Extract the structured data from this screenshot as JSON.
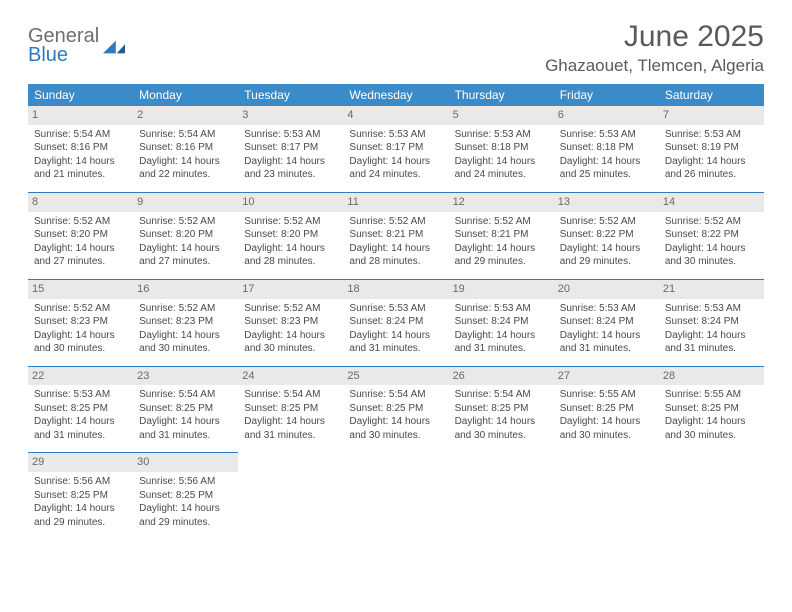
{
  "logo": {
    "general": "General",
    "blue": "Blue"
  },
  "title": "June 2025",
  "location": "Ghazaouet, Tlemcen, Algeria",
  "colors": {
    "header_bg": "#3b8bc9",
    "header_text": "#ffffff",
    "daynum_bg": "#e9e9e9",
    "row_border": "#2f7bbf",
    "text": "#4a4a4a",
    "title_color": "#5a5a5a",
    "logo_gray": "#6f6f6f",
    "logo_blue": "#2f7bbf",
    "page_bg": "#ffffff"
  },
  "typography": {
    "title_fontsize": 30,
    "location_fontsize": 17,
    "header_fontsize": 12,
    "cell_fontsize": 10,
    "daynum_fontsize": 11
  },
  "table": {
    "columns": [
      "Sunday",
      "Monday",
      "Tuesday",
      "Wednesday",
      "Thursday",
      "Friday",
      "Saturday"
    ],
    "weeks": [
      [
        {
          "day": "1",
          "sunrise": "Sunrise: 5:54 AM",
          "sunset": "Sunset: 8:16 PM",
          "dl1": "Daylight: 14 hours",
          "dl2": "and 21 minutes."
        },
        {
          "day": "2",
          "sunrise": "Sunrise: 5:54 AM",
          "sunset": "Sunset: 8:16 PM",
          "dl1": "Daylight: 14 hours",
          "dl2": "and 22 minutes."
        },
        {
          "day": "3",
          "sunrise": "Sunrise: 5:53 AM",
          "sunset": "Sunset: 8:17 PM",
          "dl1": "Daylight: 14 hours",
          "dl2": "and 23 minutes."
        },
        {
          "day": "4",
          "sunrise": "Sunrise: 5:53 AM",
          "sunset": "Sunset: 8:17 PM",
          "dl1": "Daylight: 14 hours",
          "dl2": "and 24 minutes."
        },
        {
          "day": "5",
          "sunrise": "Sunrise: 5:53 AM",
          "sunset": "Sunset: 8:18 PM",
          "dl1": "Daylight: 14 hours",
          "dl2": "and 24 minutes."
        },
        {
          "day": "6",
          "sunrise": "Sunrise: 5:53 AM",
          "sunset": "Sunset: 8:18 PM",
          "dl1": "Daylight: 14 hours",
          "dl2": "and 25 minutes."
        },
        {
          "day": "7",
          "sunrise": "Sunrise: 5:53 AM",
          "sunset": "Sunset: 8:19 PM",
          "dl1": "Daylight: 14 hours",
          "dl2": "and 26 minutes."
        }
      ],
      [
        {
          "day": "8",
          "sunrise": "Sunrise: 5:52 AM",
          "sunset": "Sunset: 8:20 PM",
          "dl1": "Daylight: 14 hours",
          "dl2": "and 27 minutes."
        },
        {
          "day": "9",
          "sunrise": "Sunrise: 5:52 AM",
          "sunset": "Sunset: 8:20 PM",
          "dl1": "Daylight: 14 hours",
          "dl2": "and 27 minutes."
        },
        {
          "day": "10",
          "sunrise": "Sunrise: 5:52 AM",
          "sunset": "Sunset: 8:20 PM",
          "dl1": "Daylight: 14 hours",
          "dl2": "and 28 minutes."
        },
        {
          "day": "11",
          "sunrise": "Sunrise: 5:52 AM",
          "sunset": "Sunset: 8:21 PM",
          "dl1": "Daylight: 14 hours",
          "dl2": "and 28 minutes."
        },
        {
          "day": "12",
          "sunrise": "Sunrise: 5:52 AM",
          "sunset": "Sunset: 8:21 PM",
          "dl1": "Daylight: 14 hours",
          "dl2": "and 29 minutes."
        },
        {
          "day": "13",
          "sunrise": "Sunrise: 5:52 AM",
          "sunset": "Sunset: 8:22 PM",
          "dl1": "Daylight: 14 hours",
          "dl2": "and 29 minutes."
        },
        {
          "day": "14",
          "sunrise": "Sunrise: 5:52 AM",
          "sunset": "Sunset: 8:22 PM",
          "dl1": "Daylight: 14 hours",
          "dl2": "and 30 minutes."
        }
      ],
      [
        {
          "day": "15",
          "sunrise": "Sunrise: 5:52 AM",
          "sunset": "Sunset: 8:23 PM",
          "dl1": "Daylight: 14 hours",
          "dl2": "and 30 minutes."
        },
        {
          "day": "16",
          "sunrise": "Sunrise: 5:52 AM",
          "sunset": "Sunset: 8:23 PM",
          "dl1": "Daylight: 14 hours",
          "dl2": "and 30 minutes."
        },
        {
          "day": "17",
          "sunrise": "Sunrise: 5:52 AM",
          "sunset": "Sunset: 8:23 PM",
          "dl1": "Daylight: 14 hours",
          "dl2": "and 30 minutes."
        },
        {
          "day": "18",
          "sunrise": "Sunrise: 5:53 AM",
          "sunset": "Sunset: 8:24 PM",
          "dl1": "Daylight: 14 hours",
          "dl2": "and 31 minutes."
        },
        {
          "day": "19",
          "sunrise": "Sunrise: 5:53 AM",
          "sunset": "Sunset: 8:24 PM",
          "dl1": "Daylight: 14 hours",
          "dl2": "and 31 minutes."
        },
        {
          "day": "20",
          "sunrise": "Sunrise: 5:53 AM",
          "sunset": "Sunset: 8:24 PM",
          "dl1": "Daylight: 14 hours",
          "dl2": "and 31 minutes."
        },
        {
          "day": "21",
          "sunrise": "Sunrise: 5:53 AM",
          "sunset": "Sunset: 8:24 PM",
          "dl1": "Daylight: 14 hours",
          "dl2": "and 31 minutes."
        }
      ],
      [
        {
          "day": "22",
          "sunrise": "Sunrise: 5:53 AM",
          "sunset": "Sunset: 8:25 PM",
          "dl1": "Daylight: 14 hours",
          "dl2": "and 31 minutes."
        },
        {
          "day": "23",
          "sunrise": "Sunrise: 5:54 AM",
          "sunset": "Sunset: 8:25 PM",
          "dl1": "Daylight: 14 hours",
          "dl2": "and 31 minutes."
        },
        {
          "day": "24",
          "sunrise": "Sunrise: 5:54 AM",
          "sunset": "Sunset: 8:25 PM",
          "dl1": "Daylight: 14 hours",
          "dl2": "and 31 minutes."
        },
        {
          "day": "25",
          "sunrise": "Sunrise: 5:54 AM",
          "sunset": "Sunset: 8:25 PM",
          "dl1": "Daylight: 14 hours",
          "dl2": "and 30 minutes."
        },
        {
          "day": "26",
          "sunrise": "Sunrise: 5:54 AM",
          "sunset": "Sunset: 8:25 PM",
          "dl1": "Daylight: 14 hours",
          "dl2": "and 30 minutes."
        },
        {
          "day": "27",
          "sunrise": "Sunrise: 5:55 AM",
          "sunset": "Sunset: 8:25 PM",
          "dl1": "Daylight: 14 hours",
          "dl2": "and 30 minutes."
        },
        {
          "day": "28",
          "sunrise": "Sunrise: 5:55 AM",
          "sunset": "Sunset: 8:25 PM",
          "dl1": "Daylight: 14 hours",
          "dl2": "and 30 minutes."
        }
      ],
      [
        {
          "day": "29",
          "sunrise": "Sunrise: 5:56 AM",
          "sunset": "Sunset: 8:25 PM",
          "dl1": "Daylight: 14 hours",
          "dl2": "and 29 minutes."
        },
        {
          "day": "30",
          "sunrise": "Sunrise: 5:56 AM",
          "sunset": "Sunset: 8:25 PM",
          "dl1": "Daylight: 14 hours",
          "dl2": "and 29 minutes."
        },
        null,
        null,
        null,
        null,
        null
      ]
    ]
  }
}
